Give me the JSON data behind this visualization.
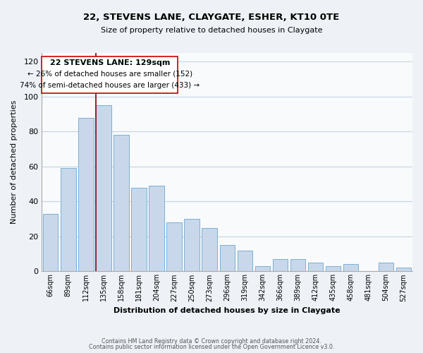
{
  "title": "22, STEVENS LANE, CLAYGATE, ESHER, KT10 0TE",
  "subtitle": "Size of property relative to detached houses in Claygate",
  "xlabel": "Distribution of detached houses by size in Claygate",
  "ylabel": "Number of detached properties",
  "bar_color": "#c8d8ea",
  "bar_edge_color": "#7bafd4",
  "categories": [
    "66sqm",
    "89sqm",
    "112sqm",
    "135sqm",
    "158sqm",
    "181sqm",
    "204sqm",
    "227sqm",
    "250sqm",
    "273sqm",
    "296sqm",
    "319sqm",
    "342sqm",
    "366sqm",
    "389sqm",
    "412sqm",
    "435sqm",
    "458sqm",
    "481sqm",
    "504sqm",
    "527sqm"
  ],
  "values": [
    33,
    59,
    88,
    95,
    78,
    48,
    49,
    28,
    30,
    25,
    15,
    12,
    3,
    7,
    7,
    5,
    3,
    4,
    0,
    5,
    2
  ],
  "ylim": [
    0,
    125
  ],
  "yticks": [
    0,
    20,
    40,
    60,
    80,
    100,
    120
  ],
  "property_line_color": "#8b0000",
  "annotation_text_line1": "22 STEVENS LANE: 129sqm",
  "annotation_text_line2": "← 26% of detached houses are smaller (152)",
  "annotation_text_line3": "74% of semi-detached houses are larger (433) →",
  "footer_line1": "Contains HM Land Registry data © Crown copyright and database right 2024.",
  "footer_line2": "Contains public sector information licensed under the Open Government Licence v3.0.",
  "background_color": "#eef2f7",
  "plot_background_color": "#f8fafc",
  "grid_color": "#c8d4e0"
}
